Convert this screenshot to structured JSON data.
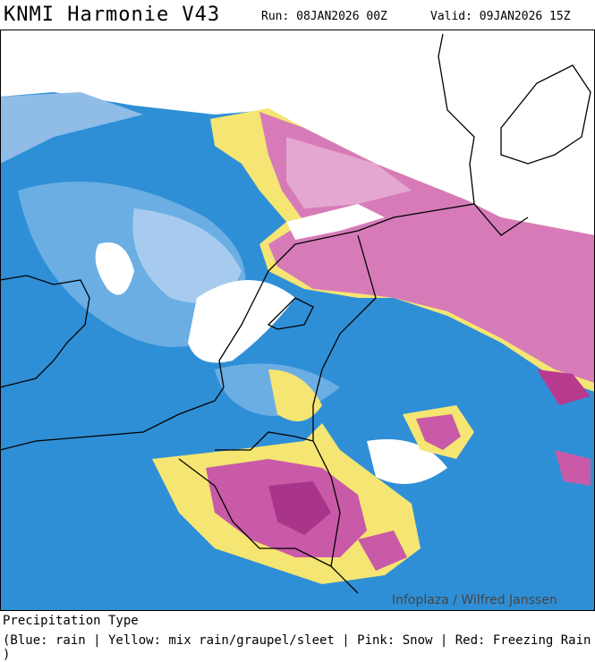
{
  "header": {
    "title": "KNMI Harmonie V43",
    "run": "Run: 08JAN2026 00Z",
    "valid": "Valid: 09JAN2026 15Z"
  },
  "map": {
    "watermark": "Infoplaza / Wilfred Janssen"
  },
  "footer": {
    "title": "Precipitation Type",
    "legend": "(Blue: rain | Yellow: mix rain/graupel/sleet | Pink: Snow | Red: Freezing Rain )"
  }
}
